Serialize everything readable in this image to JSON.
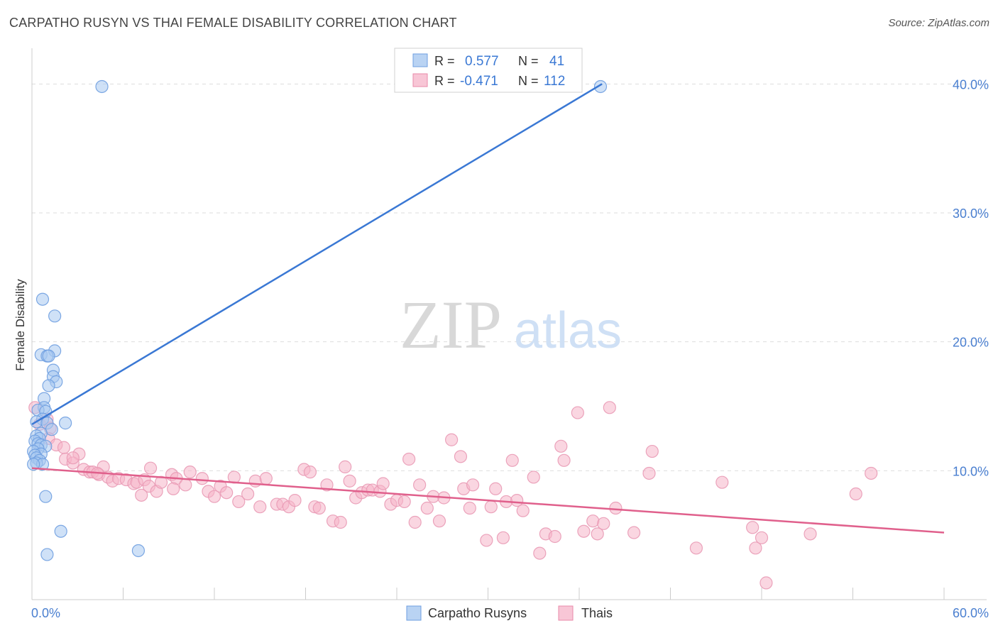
{
  "title": "CARPATHO RUSYN VS THAI FEMALE DISABILITY CORRELATION CHART",
  "source": "Source: ZipAtlas.com",
  "watermark": {
    "zip": "ZIP",
    "atlas": "atlas"
  },
  "legend_box": {
    "rows": [
      {
        "r_label": "R =",
        "r_value": "0.577",
        "n_label": "N =",
        "n_value": "41"
      },
      {
        "r_label": "R =",
        "r_value": "-0.471",
        "n_label": "N =",
        "n_value": "112"
      }
    ]
  },
  "bottom_legend": [
    "Carpatho Rusyns",
    "Thais"
  ],
  "colors": {
    "blue": "#3a78d4",
    "blue_fill": "#a8c8f0",
    "pink": "#e0608c",
    "pink_fill": "#f5b5c9",
    "tick_text": "#4a7fd0"
  },
  "chart_data": {
    "type": "scatter",
    "title": "CARPATHO RUSYN VS THAI FEMALE DISABILITY CORRELATION CHART",
    "xlabel": "",
    "ylabel": "Female Disability",
    "xlim": [
      0,
      60
    ],
    "ylim": [
      0,
      42
    ],
    "x_tick_labels": [
      "0.0%",
      "60.0%"
    ],
    "y_ticks": [
      10,
      20,
      30,
      40
    ],
    "y_tick_labels": [
      "10.0%",
      "20.0%",
      "30.0%",
      "40.0%"
    ],
    "grid": "horizontal dashed",
    "legend_placement": "top-center",
    "series": [
      {
        "name": "Carpatho Rusyns",
        "color": "#3a78d4",
        "r": 0.577,
        "n": 41,
        "trend": [
          [
            0,
            13.6
          ],
          [
            37.5,
            40.0
          ]
        ],
        "points": [
          [
            4.6,
            39.8
          ],
          [
            37.4,
            39.8
          ],
          [
            0.7,
            23.3
          ],
          [
            1.5,
            22.0
          ],
          [
            1.5,
            19.3
          ],
          [
            0.6,
            19.0
          ],
          [
            1.0,
            18.9
          ],
          [
            1.1,
            18.9
          ],
          [
            1.4,
            17.8
          ],
          [
            1.4,
            17.3
          ],
          [
            1.6,
            16.9
          ],
          [
            1.1,
            16.6
          ],
          [
            0.8,
            15.6
          ],
          [
            0.8,
            14.9
          ],
          [
            0.4,
            14.7
          ],
          [
            0.9,
            14.6
          ],
          [
            0.7,
            14.0
          ],
          [
            0.3,
            13.8
          ],
          [
            1.0,
            13.7
          ],
          [
            2.2,
            13.7
          ],
          [
            1.3,
            13.2
          ],
          [
            0.6,
            12.9
          ],
          [
            0.3,
            12.7
          ],
          [
            0.5,
            12.5
          ],
          [
            0.2,
            12.3
          ],
          [
            0.4,
            12.1
          ],
          [
            0.6,
            12.0
          ],
          [
            0.9,
            11.9
          ],
          [
            0.4,
            11.7
          ],
          [
            0.1,
            11.5
          ],
          [
            0.6,
            11.3
          ],
          [
            0.2,
            11.2
          ],
          [
            0.3,
            11.0
          ],
          [
            0.5,
            10.8
          ],
          [
            0.3,
            10.6
          ],
          [
            0.7,
            10.5
          ],
          [
            0.1,
            10.5
          ],
          [
            0.9,
            8.0
          ],
          [
            1.9,
            5.3
          ],
          [
            1.0,
            3.5
          ],
          [
            7.0,
            3.8
          ]
        ]
      },
      {
        "name": "Thais",
        "color": "#e0608c",
        "r": -0.471,
        "n": 112,
        "trend": [
          [
            0,
            10.2
          ],
          [
            60,
            5.2
          ]
        ],
        "points": [
          [
            0.2,
            14.9
          ],
          [
            1.0,
            14.0
          ],
          [
            0.5,
            13.6
          ],
          [
            1.2,
            13.3
          ],
          [
            1.1,
            12.5
          ],
          [
            1.6,
            12.0
          ],
          [
            2.1,
            11.8
          ],
          [
            3.1,
            11.3
          ],
          [
            2.2,
            10.9
          ],
          [
            2.7,
            10.6
          ],
          [
            3.4,
            10.1
          ],
          [
            4.7,
            10.3
          ],
          [
            3.8,
            9.9
          ],
          [
            4.0,
            9.9
          ],
          [
            4.4,
            9.7
          ],
          [
            5.0,
            9.5
          ],
          [
            5.3,
            9.2
          ],
          [
            5.7,
            9.4
          ],
          [
            6.2,
            9.3
          ],
          [
            6.7,
            9.0
          ],
          [
            6.9,
            9.1
          ],
          [
            7.4,
            9.3
          ],
          [
            7.7,
            8.8
          ],
          [
            7.2,
            8.1
          ],
          [
            7.8,
            10.2
          ],
          [
            8.2,
            8.4
          ],
          [
            8.5,
            9.1
          ],
          [
            9.2,
            9.7
          ],
          [
            9.5,
            9.4
          ],
          [
            9.3,
            8.6
          ],
          [
            10.1,
            8.9
          ],
          [
            10.4,
            9.9
          ],
          [
            11.2,
            9.4
          ],
          [
            11.6,
            8.4
          ],
          [
            12.0,
            8.0
          ],
          [
            12.4,
            8.8
          ],
          [
            12.8,
            8.3
          ],
          [
            13.3,
            9.5
          ],
          [
            13.6,
            7.6
          ],
          [
            14.2,
            8.2
          ],
          [
            14.7,
            9.2
          ],
          [
            15.0,
            7.2
          ],
          [
            15.4,
            9.4
          ],
          [
            16.1,
            7.4
          ],
          [
            16.5,
            7.4
          ],
          [
            16.9,
            7.2
          ],
          [
            17.3,
            7.7
          ],
          [
            17.9,
            10.1
          ],
          [
            18.3,
            9.9
          ],
          [
            18.6,
            7.2
          ],
          [
            18.9,
            7.1
          ],
          [
            19.4,
            8.9
          ],
          [
            19.8,
            6.1
          ],
          [
            20.3,
            6.0
          ],
          [
            20.6,
            10.3
          ],
          [
            20.9,
            9.2
          ],
          [
            21.3,
            7.9
          ],
          [
            21.7,
            8.3
          ],
          [
            22.1,
            8.5
          ],
          [
            22.4,
            8.5
          ],
          [
            22.9,
            8.4
          ],
          [
            23.1,
            9.0
          ],
          [
            23.6,
            7.4
          ],
          [
            24.0,
            7.7
          ],
          [
            24.5,
            7.6
          ],
          [
            24.8,
            10.9
          ],
          [
            25.2,
            6.0
          ],
          [
            25.5,
            8.9
          ],
          [
            26.0,
            7.1
          ],
          [
            26.4,
            8.0
          ],
          [
            26.8,
            6.1
          ],
          [
            27.1,
            7.9
          ],
          [
            27.6,
            12.4
          ],
          [
            28.2,
            11.1
          ],
          [
            28.4,
            8.6
          ],
          [
            28.8,
            7.1
          ],
          [
            29.0,
            8.9
          ],
          [
            29.9,
            4.6
          ],
          [
            30.2,
            7.2
          ],
          [
            30.5,
            8.6
          ],
          [
            31.0,
            4.8
          ],
          [
            31.2,
            7.6
          ],
          [
            31.6,
            10.8
          ],
          [
            31.9,
            7.7
          ],
          [
            32.3,
            6.9
          ],
          [
            33.0,
            9.5
          ],
          [
            33.4,
            3.6
          ],
          [
            33.8,
            5.1
          ],
          [
            34.4,
            4.9
          ],
          [
            34.8,
            11.9
          ],
          [
            35.0,
            10.8
          ],
          [
            35.9,
            14.5
          ],
          [
            36.3,
            5.3
          ],
          [
            36.9,
            6.1
          ],
          [
            37.2,
            5.1
          ],
          [
            37.6,
            5.9
          ],
          [
            38.0,
            14.9
          ],
          [
            38.4,
            7.1
          ],
          [
            39.6,
            5.2
          ],
          [
            40.6,
            9.8
          ],
          [
            40.8,
            11.5
          ],
          [
            43.7,
            4.0
          ],
          [
            45.4,
            9.1
          ],
          [
            47.4,
            5.6
          ],
          [
            47.6,
            4.0
          ],
          [
            48.0,
            4.8
          ],
          [
            48.3,
            1.3
          ],
          [
            51.2,
            5.1
          ],
          [
            54.2,
            8.2
          ],
          [
            55.2,
            9.8
          ],
          [
            2.7,
            11.0
          ],
          [
            4.3,
            9.8
          ]
        ]
      }
    ]
  }
}
